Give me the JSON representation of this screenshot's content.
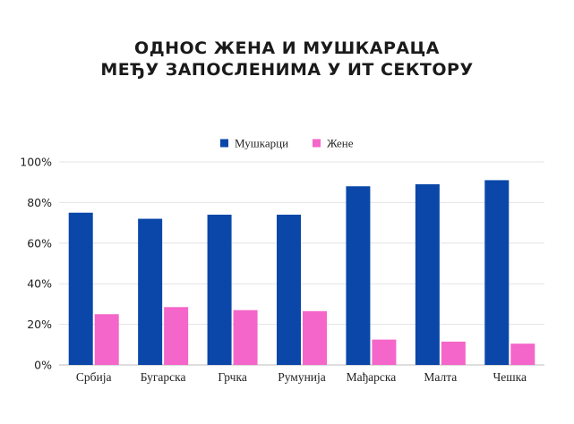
{
  "chart_data": {
    "type": "bar",
    "title_lines": [
      "ОДНОС ЖЕНА И МУШКАРАЦА",
      "МЕЂУ ЗАПОСЛЕНИМА У ИТ СЕКТОРУ"
    ],
    "categories": [
      "Србија",
      "Бугарска",
      "Грчка",
      "Румунија",
      "Мађарска",
      "Малта",
      "Чешка"
    ],
    "series": [
      {
        "name": "Мушкарци",
        "color": "#0a47a9",
        "values": [
          75,
          72,
          74,
          74,
          88,
          89,
          91
        ]
      },
      {
        "name": "Жене",
        "color": "#f466c9",
        "values": [
          25,
          28.5,
          27,
          26.5,
          12.5,
          11.5,
          10.5
        ]
      }
    ],
    "yticks": [
      "0%",
      "20%",
      "40%",
      "60%",
      "80%",
      "100%"
    ],
    "ylim": [
      0,
      100
    ],
    "grid": true,
    "legend_position": "top-center"
  }
}
